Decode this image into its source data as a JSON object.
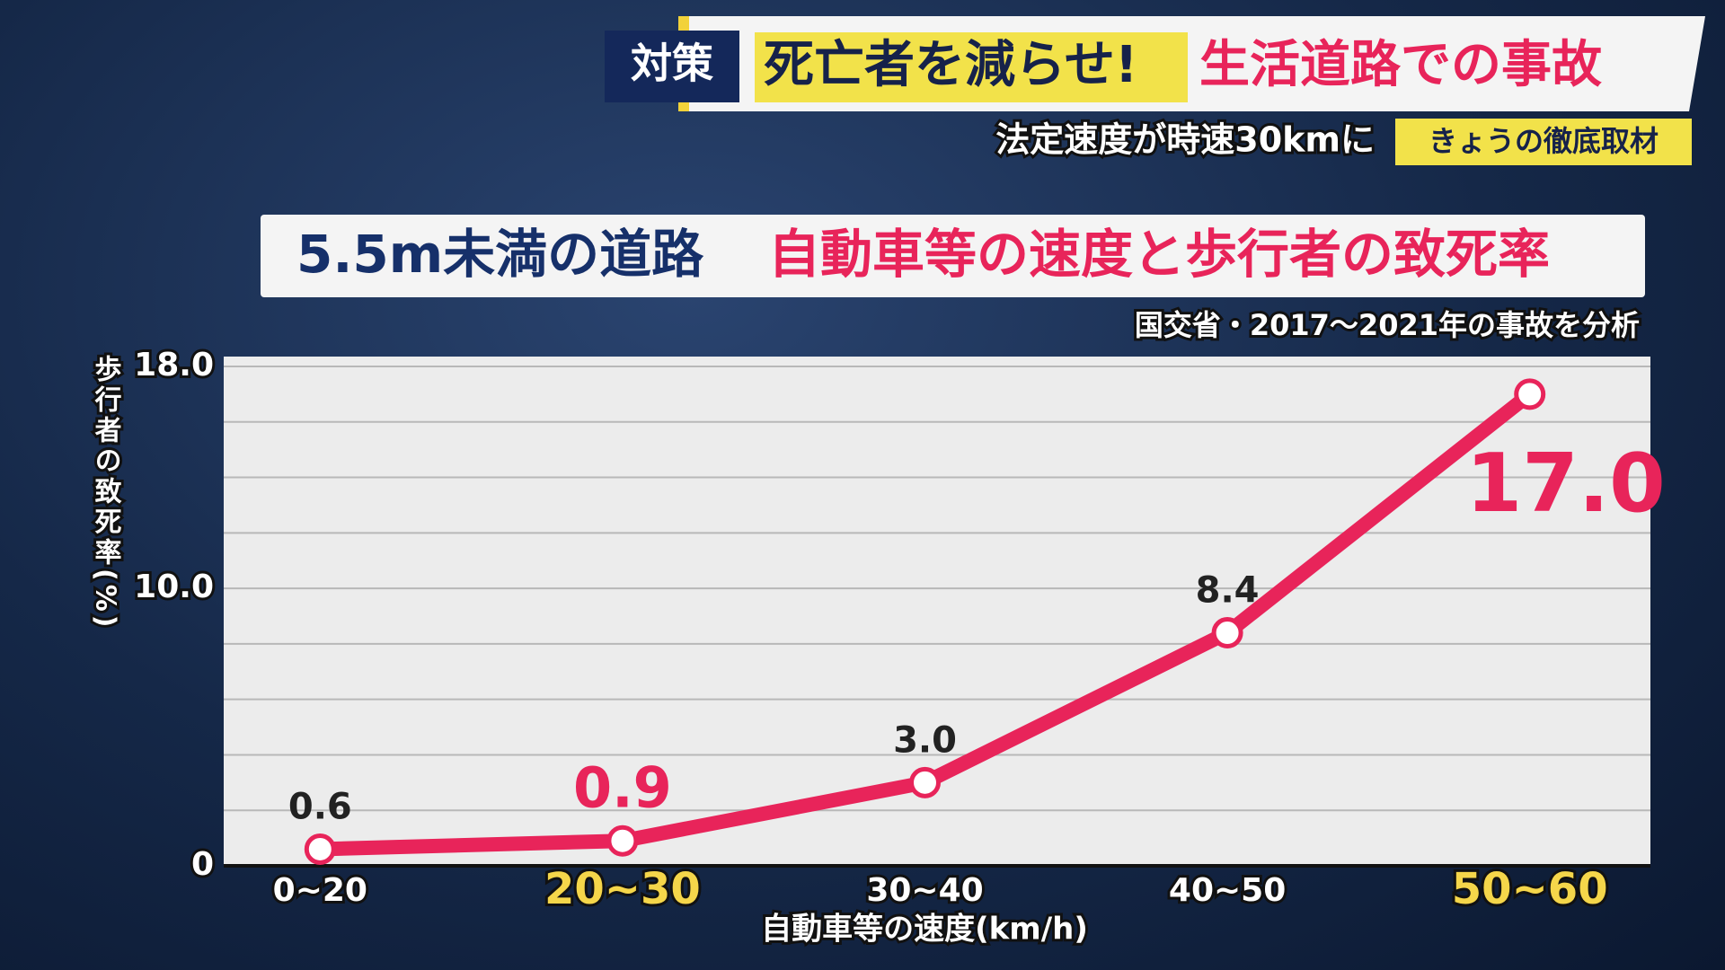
{
  "header": {
    "tag": "対策",
    "headline": "死亡者を減らせ!",
    "headline_sub": "生活道路での事故",
    "caption": "法定速度が時速30kmに",
    "corner": "きょうの徹底取材"
  },
  "chart_data": {
    "type": "line",
    "title": "5.5m未満の道路",
    "title_sub": "自動車等の速度と歩行者の致死率",
    "subtitle": "国交省・2017～2021年の事故を分析",
    "y_label": "歩行者の致死率(%)",
    "x_label": "自動車等の速度(km/h)",
    "categories": [
      "0~20",
      "20~30",
      "30~40",
      "40~50",
      "50~60"
    ],
    "values": [
      0.6,
      0.9,
      3.0,
      8.4,
      17.0
    ],
    "value_labels": [
      "0.6",
      "0.9",
      "3.0",
      "8.4",
      "17.0"
    ],
    "highlight": [
      1,
      4
    ],
    "color": "#e8245a",
    "ylim": [
      0,
      18
    ],
    "yticks": [
      0,
      {
        "value": 10,
        "label": "10.0"
      },
      {
        "value": 18,
        "label": "18.0"
      }
    ],
    "minor_yticks": [
      2,
      4,
      6,
      8,
      12,
      14,
      16
    ],
    "grid": true
  }
}
